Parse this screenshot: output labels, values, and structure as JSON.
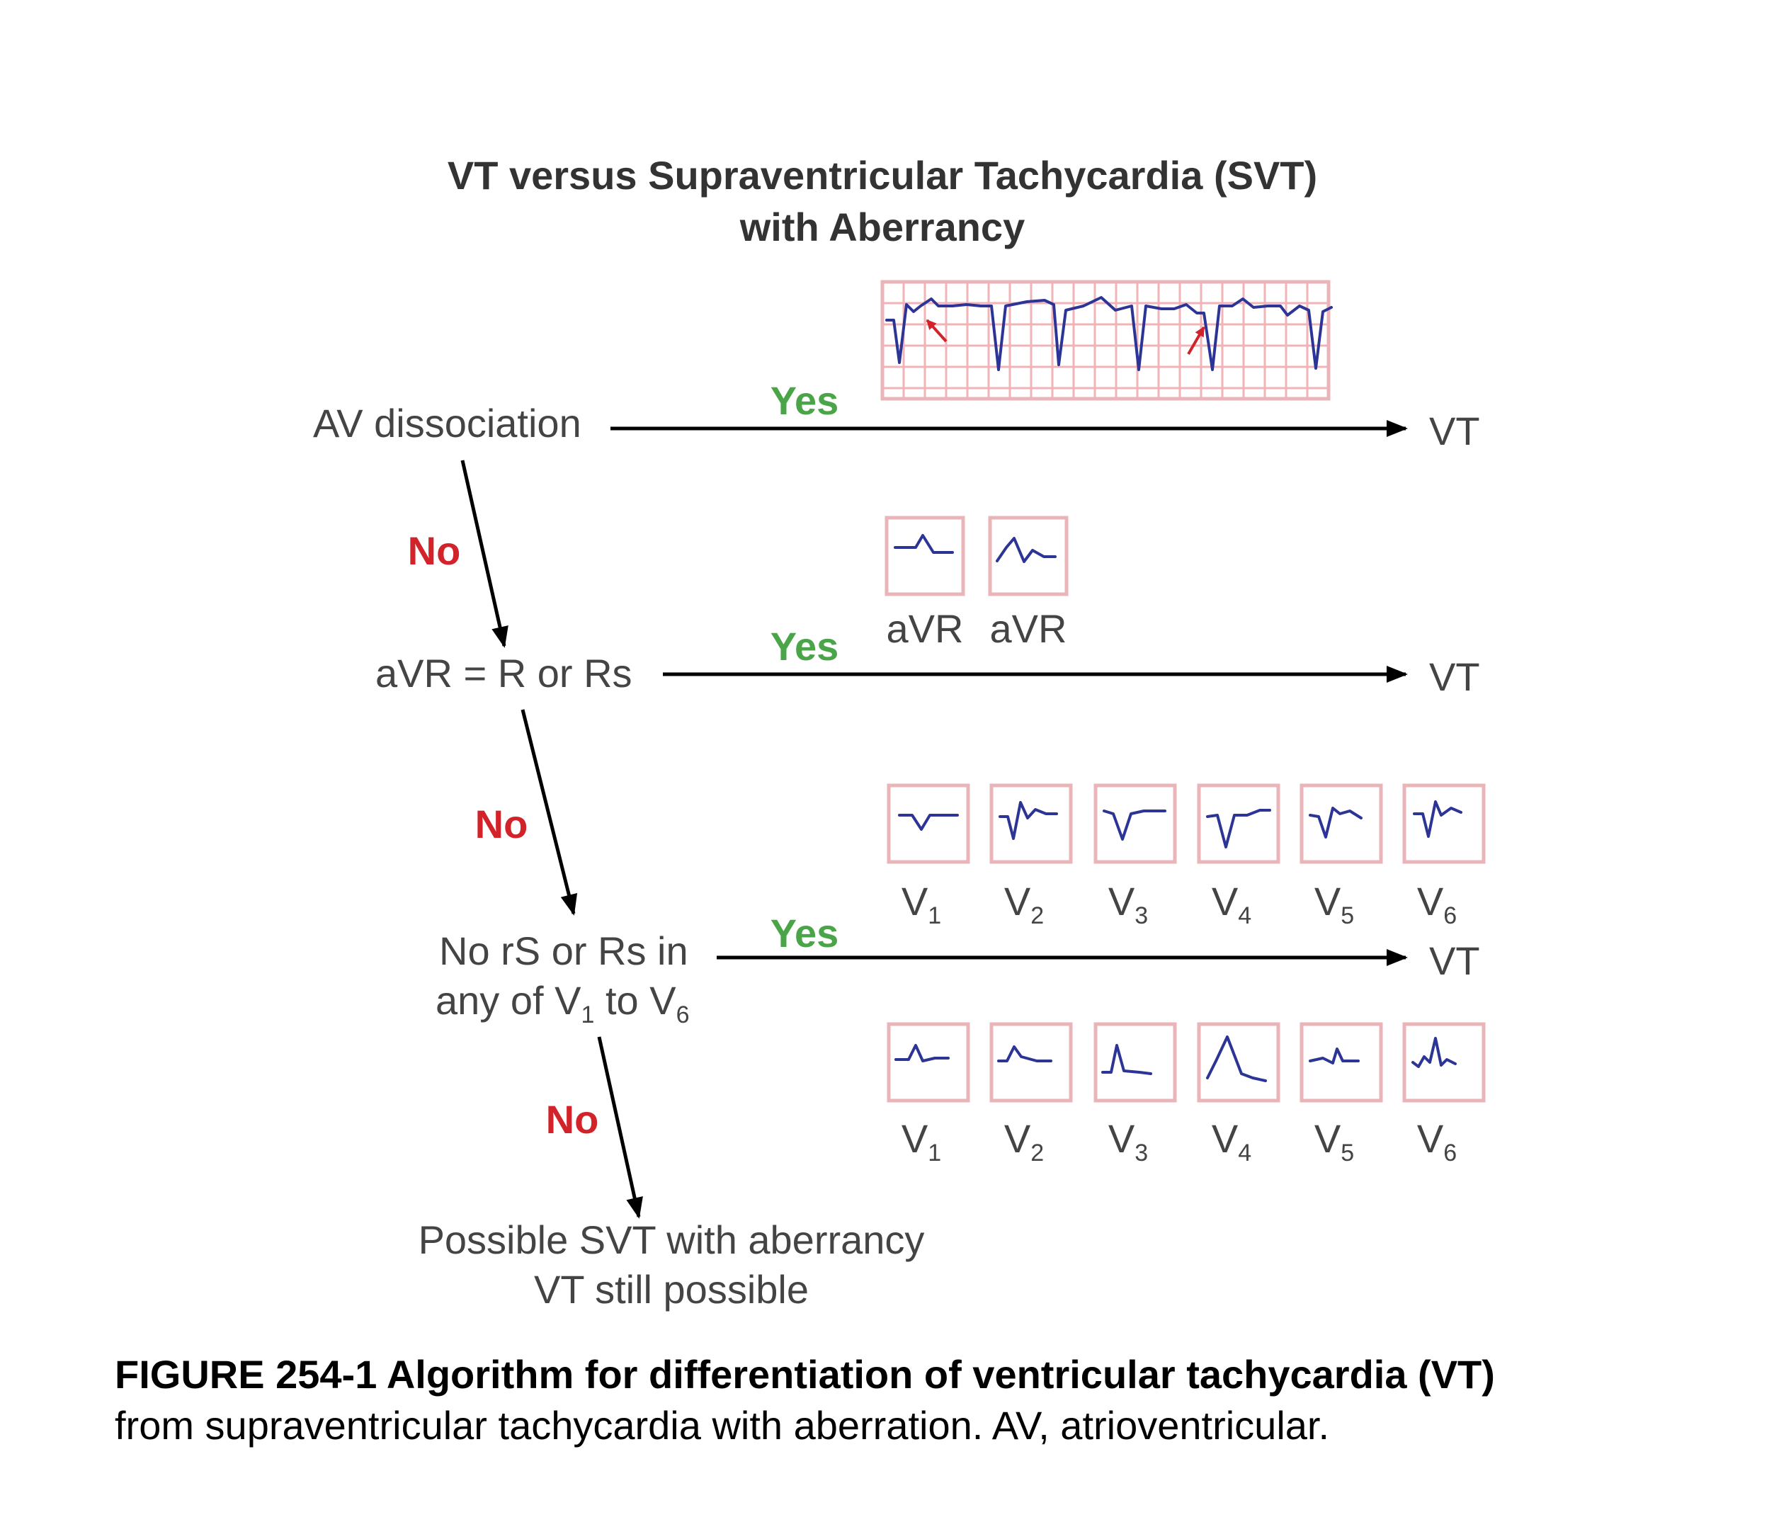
{
  "title": {
    "line1": "VT versus Supraventricular Tachycardia (SVT)",
    "line2": "with Aberrancy"
  },
  "nodes": {
    "av_dissociation": "AV dissociation",
    "avr_criterion": "aVR = R or Rs",
    "precordial_line1": "No rS or Rs in",
    "precordial_line2_pre": "any of V",
    "precordial_line2_sub1": "1",
    "precordial_line2_mid": " to V",
    "precordial_line2_sub2": "6",
    "end_line1": "Possible SVT with aberrancy",
    "end_line2": "VT still possible"
  },
  "branches": {
    "yes": "Yes",
    "no": "No",
    "outcome": "VT"
  },
  "ecg_labels": {
    "avr": "aVR",
    "lead_letter": "V",
    "lead_numbers": [
      "1",
      "2",
      "3",
      "4",
      "5",
      "6"
    ]
  },
  "caption": {
    "bold": "FIGURE 254-1 Algorithm for differentiation of ventricular tachycardia (VT)",
    "normal": "from supraventricular tachycardia with aberration. AV, atrioventricular."
  },
  "colors": {
    "yes": "#4aa548",
    "no": "#d2232a",
    "ecg_trace": "#2c3596",
    "ecg_grid": "#f1b3b8"
  }
}
